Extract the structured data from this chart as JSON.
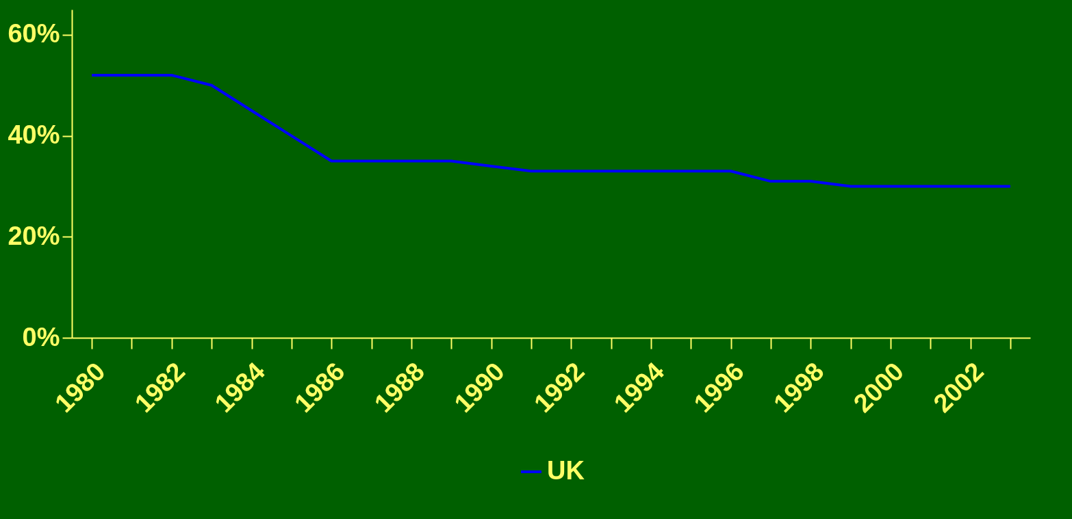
{
  "chart_data": {
    "type": "line",
    "categories": [
      "1980",
      null,
      "1982",
      null,
      "1984",
      null,
      "1986",
      null,
      "1988",
      null,
      "1990",
      null,
      "1992",
      null,
      "1994",
      null,
      "1996",
      null,
      "1998",
      null,
      "2000",
      null,
      "2002",
      null
    ],
    "series": [
      {
        "name": "UK",
        "color": "#0000ff",
        "values": [
          52,
          52,
          52,
          50,
          45,
          40,
          35,
          35,
          35,
          35,
          34,
          33,
          33,
          33,
          33,
          33,
          33,
          31,
          31,
          30,
          30,
          30,
          30,
          30
        ]
      }
    ],
    "ylim": [
      0,
      65
    ],
    "yticks": [
      {
        "value": 0,
        "label": "0%"
      },
      {
        "value": 20,
        "label": "20%"
      },
      {
        "value": 40,
        "label": "40%"
      },
      {
        "value": 60,
        "label": "60%"
      }
    ],
    "grid": false,
    "legend": "bottom",
    "marker": "none",
    "line_style": "solid"
  }
}
